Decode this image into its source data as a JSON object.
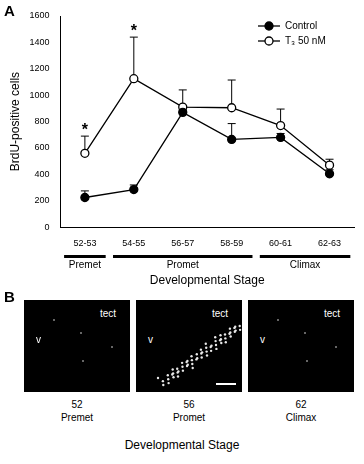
{
  "figure_labels": [
    "A",
    "B"
  ],
  "chart_data": {
    "type": "line",
    "categories": [
      "52-53",
      "54-55",
      "56-57",
      "58-59",
      "60-61",
      "62-63"
    ],
    "series": [
      {
        "name": "Control",
        "color": "#000000",
        "marker": "filled_circle",
        "values": [
          225,
          285,
          870,
          665,
          680,
          405
        ],
        "errors": [
          50,
          35,
          20,
          120,
          30,
          30
        ]
      },
      {
        "name": "T₃ 50 nM",
        "color": "#000000",
        "marker": "open_circle",
        "values": [
          560,
          1125,
          910,
          905,
          770,
          470
        ],
        "errors": [
          130,
          315,
          130,
          210,
          125,
          45
        ]
      }
    ],
    "xlabel": "Developmental Stage",
    "ylabel": "BrdU-positive cells",
    "ylim": [
      0,
      1600
    ],
    "yticks": [
      0,
      200,
      400,
      600,
      800,
      1000,
      1200,
      1400,
      1600
    ],
    "grid": false,
    "legend": "upper right",
    "stage_groups": [
      {
        "label": "Premet",
        "from": "52-53",
        "to": "52-53"
      },
      {
        "label": "Promet",
        "from": "54-55",
        "to": "58-59"
      },
      {
        "label": "Climax",
        "from": "60-61",
        "to": "62-63"
      }
    ],
    "annotations": [
      {
        "text": "*",
        "category": "52-53",
        "series": "T₃ 50 nM"
      },
      {
        "text": "*",
        "category": "54-55",
        "series": "T₃ 50 nM"
      }
    ]
  },
  "panel_b": {
    "xlabel": "Developmental Stage",
    "panels": [
      {
        "stage": "52",
        "phase": "Premet",
        "labels": [
          "tect",
          "v"
        ]
      },
      {
        "stage": "56",
        "phase": "Promet",
        "labels": [
          "tect",
          "v"
        ]
      },
      {
        "stage": "62",
        "phase": "Climax",
        "labels": [
          "tect",
          "v"
        ]
      }
    ]
  }
}
